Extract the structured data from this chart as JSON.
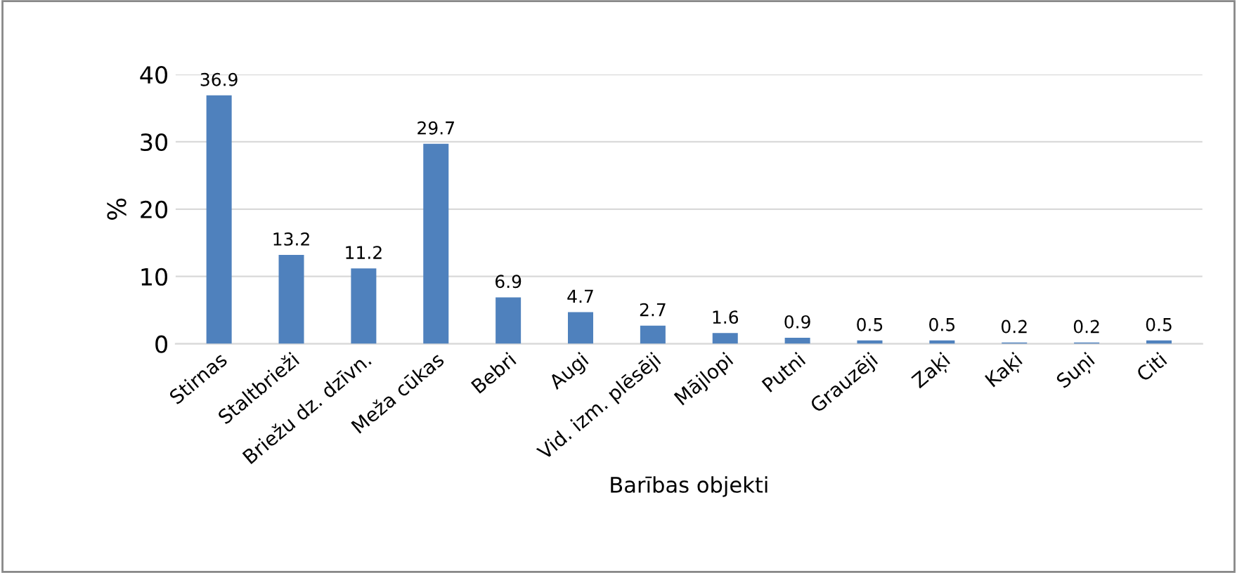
{
  "chart_data": {
    "type": "bar",
    "xlabel": "Barības objekti",
    "ylabel": "%",
    "categories": [
      "Stirnas",
      "Staltbrieži",
      "Briežu dz. dzīvn.",
      "Meža cūkas",
      "Bebri",
      "Augi",
      "Vid. izm. plēsēji",
      "Mājlopi",
      "Putni",
      "Grauzēji",
      "Zaķi",
      "Kaķi",
      "Suņi",
      "Citi"
    ],
    "values": [
      36.9,
      13.2,
      11.2,
      29.7,
      6.9,
      4.7,
      2.7,
      1.6,
      0.9,
      0.5,
      0.5,
      0.2,
      0.2,
      0.5
    ],
    "color": "#4f81bd",
    "ylim": [
      0,
      40
    ],
    "yticks": [
      0,
      10,
      20,
      30,
      40
    ],
    "grid": "y",
    "data_labels": true,
    "legend": false
  }
}
